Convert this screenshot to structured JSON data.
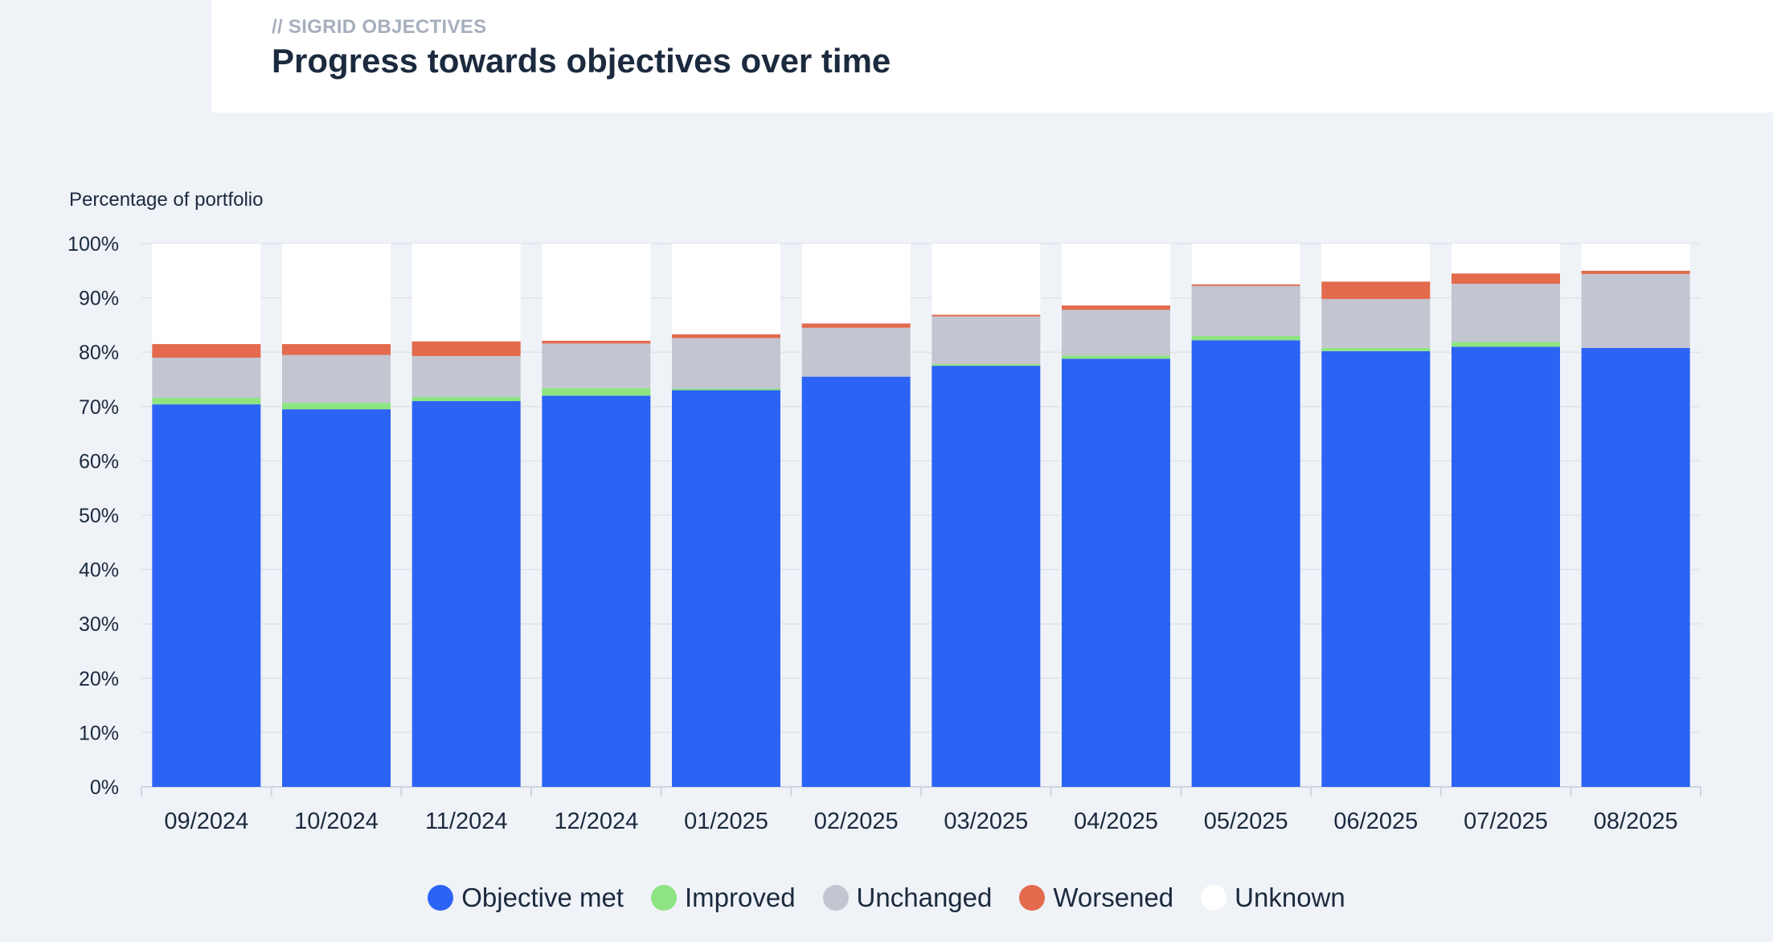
{
  "header": {
    "eyebrow": "// SIGRID OBJECTIVES",
    "title": "Progress towards objectives over time"
  },
  "chart_data": {
    "type": "bar",
    "stacked": true,
    "ylabel": "Percentage of portfolio",
    "ylim": [
      0,
      100
    ],
    "yticks": [
      "0%",
      "10%",
      "20%",
      "30%",
      "40%",
      "50%",
      "60%",
      "70%",
      "80%",
      "90%",
      "100%"
    ],
    "grid": true,
    "legend_position": "bottom",
    "categories": [
      "09/2024",
      "10/2024",
      "11/2024",
      "12/2024",
      "01/2025",
      "02/2025",
      "03/2025",
      "04/2025",
      "05/2025",
      "06/2025",
      "07/2025",
      "08/2025"
    ],
    "series": [
      {
        "name": "Objective met",
        "color": "#2b63f5",
        "values": [
          70.4,
          69.5,
          71.0,
          72.0,
          73.0,
          75.5,
          77.5,
          78.8,
          82.2,
          80.2,
          81.0,
          80.8
        ]
      },
      {
        "name": "Improved",
        "color": "#8ee483",
        "values": [
          1.2,
          1.2,
          0.8,
          1.4,
          0.3,
          0.0,
          0.3,
          0.6,
          0.8,
          0.6,
          0.9,
          0.0
        ]
      },
      {
        "name": "Unchanged",
        "color": "#c3c5d0",
        "values": [
          7.4,
          8.8,
          7.5,
          8.2,
          9.3,
          9.0,
          8.8,
          8.4,
          9.2,
          9.0,
          10.7,
          13.6
        ]
      },
      {
        "name": "Worsened",
        "color": "#e36a4c",
        "values": [
          2.5,
          2.0,
          2.7,
          0.5,
          0.7,
          0.8,
          0.3,
          0.8,
          0.3,
          3.2,
          1.9,
          0.6
        ]
      },
      {
        "name": "Unknown",
        "color": "#ffffff",
        "values": [
          18.5,
          18.5,
          18.0,
          17.9,
          16.7,
          14.7,
          13.1,
          11.4,
          7.5,
          7.0,
          5.5,
          5.0
        ]
      }
    ]
  }
}
